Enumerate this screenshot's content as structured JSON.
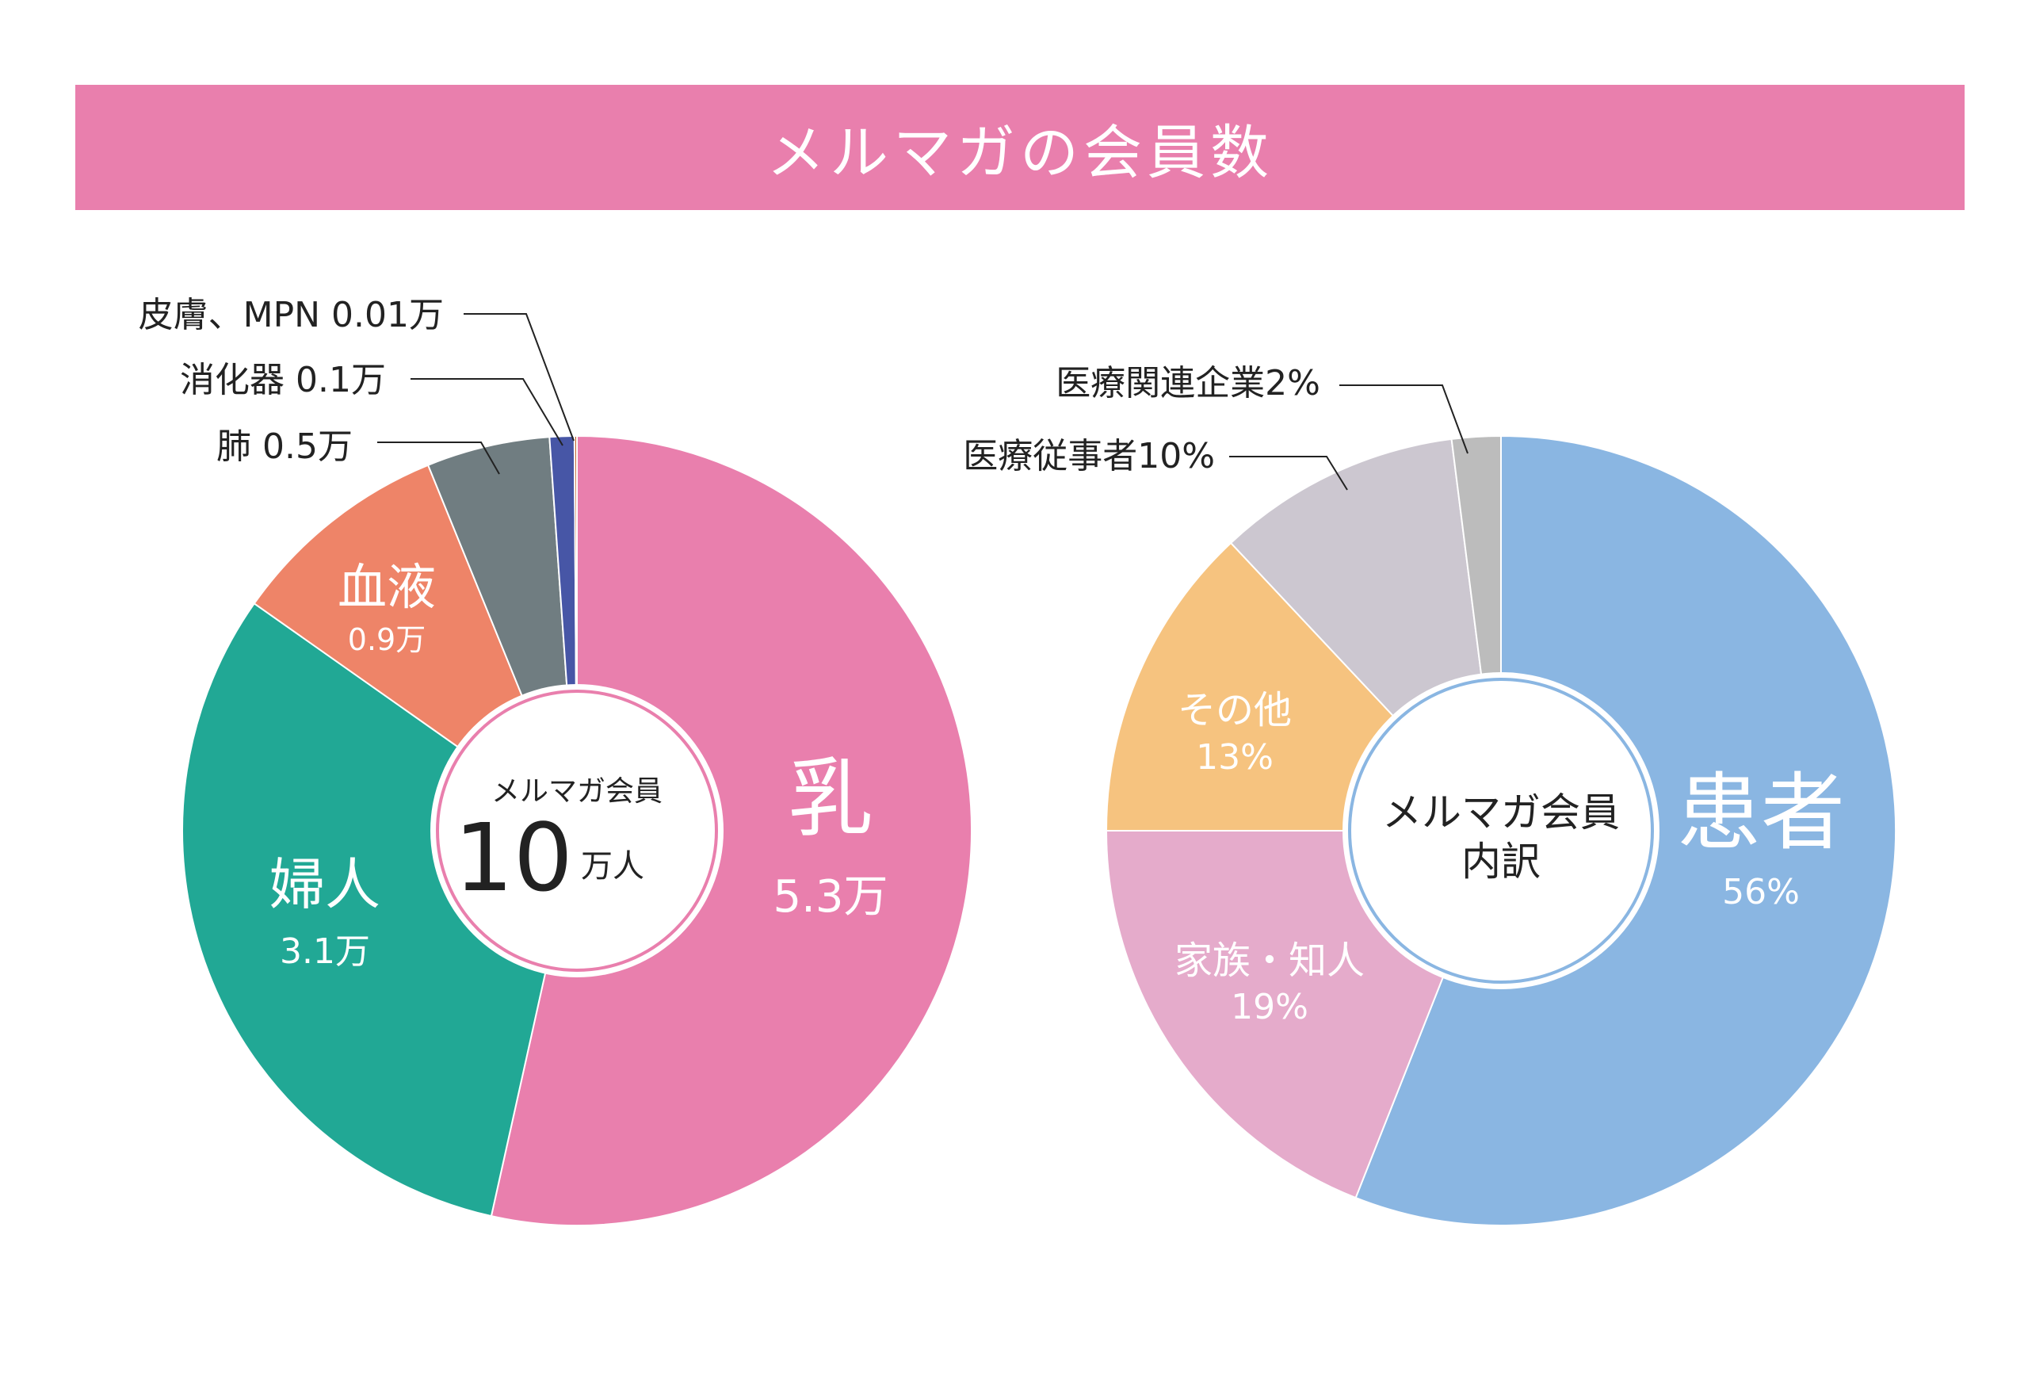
{
  "page": {
    "title": "メルマガの会員数"
  },
  "colors": {
    "banner": "#e97fad",
    "left_center_ring": "#e97fad",
    "right_center_ring": "#8ab6e2"
  },
  "chart_data": [
    {
      "type": "pie",
      "title": "",
      "unit": "万",
      "center_label": {
        "line1": "メルマガ会員",
        "number": "10",
        "unit": "万人"
      },
      "series": [
        {
          "name": "乳",
          "value": 5.3,
          "value_label": "5.3万",
          "color": "#e97fad"
        },
        {
          "name": "婦人",
          "value": 3.1,
          "value_label": "3.1万",
          "color": "#21a895"
        },
        {
          "name": "血液",
          "value": 0.9,
          "value_label": "0.9万",
          "color": "#ee8468"
        },
        {
          "name": "肺",
          "value": 0.5,
          "value_label": "0.5万",
          "color": "#707d81"
        },
        {
          "name": "消化器",
          "value": 0.1,
          "value_label": "0.1万",
          "color": "#4756a6"
        },
        {
          "name": "皮膚、MPN",
          "value": 0.01,
          "value_label": "0.01万",
          "color": "#c0622c"
        }
      ],
      "callouts": [
        {
          "text": "肺 0.5万"
        },
        {
          "text": "消化器 0.1万"
        },
        {
          "text": "皮膚、MPN 0.01万"
        }
      ]
    },
    {
      "type": "pie",
      "title": "",
      "unit": "%",
      "center_label": {
        "line1": "メルマガ会員",
        "line2": "内訳"
      },
      "series": [
        {
          "name": "患者",
          "value": 56,
          "value_label": "56%",
          "color": "#8ab6e2"
        },
        {
          "name": "家族・知人",
          "value": 19,
          "value_label": "19%",
          "color": "#e5abcb"
        },
        {
          "name": "その他",
          "value": 13,
          "value_label": "13%",
          "color": "#f6c37f"
        },
        {
          "name": "医療従事者",
          "value": 10,
          "value_label": "10%",
          "color": "#ccc7d0"
        },
        {
          "name": "医療関連企業",
          "value": 2,
          "value_label": "2%",
          "color": "#bcbcbc"
        }
      ],
      "callouts": [
        {
          "text": "医療従事者10%"
        },
        {
          "text": "医療関連企業2%"
        }
      ]
    }
  ]
}
